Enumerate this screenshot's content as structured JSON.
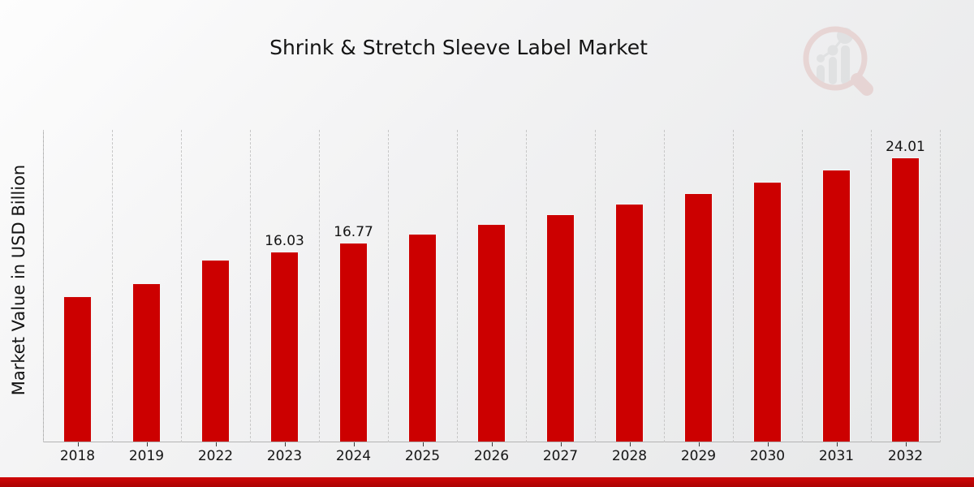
{
  "title": "Shrink & Stretch Sleeve Label Market",
  "branding": {
    "logo_icon": "magnifier-bar-chart-watermark-icon",
    "accent_red": "#c00505"
  },
  "chart_data": {
    "type": "bar",
    "title": "Shrink & Stretch Sleeve Label Market",
    "xlabel": "",
    "ylabel": "Market Value in USD Billion",
    "categories": [
      "2018",
      "2019",
      "2022",
      "2023",
      "2024",
      "2025",
      "2026",
      "2027",
      "2028",
      "2029",
      "2030",
      "2031",
      "2032"
    ],
    "values": [
      12.26,
      13.36,
      15.35,
      16.03,
      16.77,
      17.53,
      18.36,
      19.18,
      20.07,
      20.97,
      21.96,
      22.95,
      24.01
    ],
    "value_labels_shown": {
      "2023": "16.03",
      "2024": "16.77",
      "2032": "24.01"
    },
    "bar_color": "#cc0000",
    "ylim": [
      0,
      26.4
    ],
    "grid": "vertical-dashed",
    "legend_position": "none"
  }
}
